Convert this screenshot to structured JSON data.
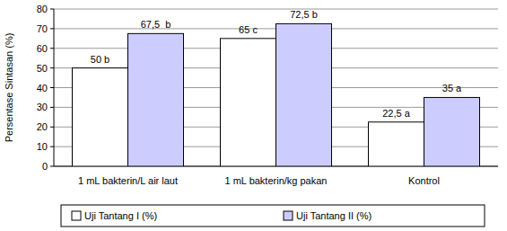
{
  "chart_data": {
    "type": "bar",
    "ylabel": "Persentase Sintasan (%)",
    "categories": [
      "1 mL bakterin/L air laut",
      "1 mL bakterin/kg pakan",
      "Kontrol"
    ],
    "series": [
      {
        "name": "Uji Tantang I (%)",
        "color": "#ffffff",
        "values": [
          50,
          65,
          22.5
        ],
        "value_labels": [
          "50 b",
          "65 c",
          "22,5 a"
        ]
      },
      {
        "name": "Uji Tantang II (%)",
        "color": "#ccccff",
        "values": [
          67.5,
          72.5,
          35
        ],
        "value_labels": [
          "67,5  b",
          "72,5 b",
          "35 a"
        ]
      }
    ],
    "ylim": [
      0,
      80
    ],
    "yticks": [
      0,
      10,
      20,
      30,
      40,
      50,
      60,
      70,
      80
    ],
    "grid": true,
    "legend": "bottom",
    "data_labels": true
  }
}
